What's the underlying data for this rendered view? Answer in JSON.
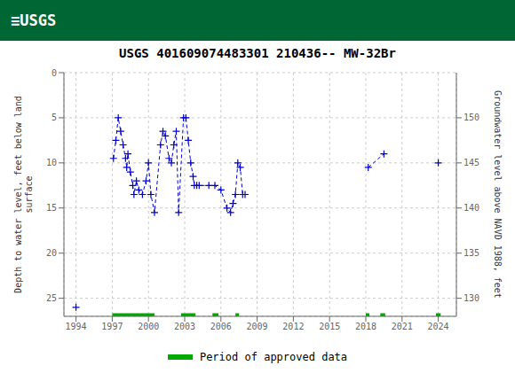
{
  "chart_data": {
    "type": "line",
    "title": "USGS 401609074483301 210436-- MW-32Br",
    "annotations": [
      "≡USGS"
    ],
    "ylabel": "Depth to water level, feet below land\nsurface",
    "y2label": "Groundwater level above NAVD 1988, feet",
    "xlim": [
      1993,
      2025.5
    ],
    "xticks": [
      1994,
      1997,
      2000,
      2003,
      2006,
      2009,
      2012,
      2015,
      2018,
      2021,
      2024
    ],
    "ylim": [
      27,
      0
    ],
    "yticks": [
      0,
      5,
      10,
      15,
      20,
      25
    ],
    "y2lim": [
      128,
      155
    ],
    "y2ticks": [
      130,
      135,
      140,
      145,
      150
    ],
    "grid": true,
    "legend": "bottom",
    "series": [
      {
        "color": "#0000cc",
        "marker": "plus",
        "line_style": "dashed",
        "x": [
          1994.0
        ],
        "values": [
          26.0
        ]
      },
      {
        "color": "#0000cc",
        "marker": "plus",
        "line_style": "dashed",
        "x": [
          1997.1,
          1997.3,
          1997.5,
          1997.7,
          1997.9,
          1998.1,
          1998.2,
          1998.3,
          1998.5,
          1998.7,
          1998.8,
          1999.0,
          1999.2,
          1999.5,
          1999.8,
          2000.0,
          2000.2,
          2000.5,
          2001.0,
          2001.2,
          2001.4,
          2001.7,
          2001.9,
          2002.1,
          2002.3,
          2002.5,
          2002.9,
          2003.1,
          2003.3,
          2003.5,
          2003.7,
          2003.8,
          2004.0,
          2004.2,
          2005.0,
          2005.5,
          2006.0,
          2006.5,
          2006.8,
          2007.0,
          2007.2,
          2007.4,
          2007.6,
          2007.8,
          2008.0
        ],
        "values": [
          9.5,
          7.5,
          5.0,
          6.5,
          8.0,
          9.5,
          10.5,
          9.0,
          11.0,
          12.5,
          13.5,
          12.0,
          13.0,
          13.5,
          12.0,
          10.0,
          13.5,
          15.5,
          8.0,
          6.5,
          7.0,
          9.5,
          10.0,
          8.0,
          6.5,
          15.5,
          5.0,
          5.0,
          7.5,
          10.0,
          11.5,
          12.5,
          12.5,
          12.5,
          12.5,
          12.5,
          13.0,
          15.0,
          15.5,
          14.5,
          13.5,
          10.0,
          10.5,
          13.5,
          13.5
        ]
      },
      {
        "color": "#0000cc",
        "marker": "plus",
        "line_style": "dashed",
        "x": [
          2018.2,
          2019.5
        ],
        "values": [
          10.5,
          9.0
        ]
      },
      {
        "color": "#0000cc",
        "marker": "plus",
        "line_style": "dashed",
        "x": [
          2024.0
        ],
        "values": [
          10.0
        ]
      },
      {
        "name": "Period of approved data",
        "type": "period",
        "color": "#00aa00",
        "periods": [
          [
            1997.0,
            2000.5
          ],
          [
            2002.7,
            2003.9
          ],
          [
            2005.3,
            2005.8
          ],
          [
            2007.2,
            2007.5
          ],
          [
            2018.0,
            2018.3
          ],
          [
            2019.2,
            2019.6
          ],
          [
            2023.8,
            2024.2
          ]
        ]
      }
    ]
  }
}
